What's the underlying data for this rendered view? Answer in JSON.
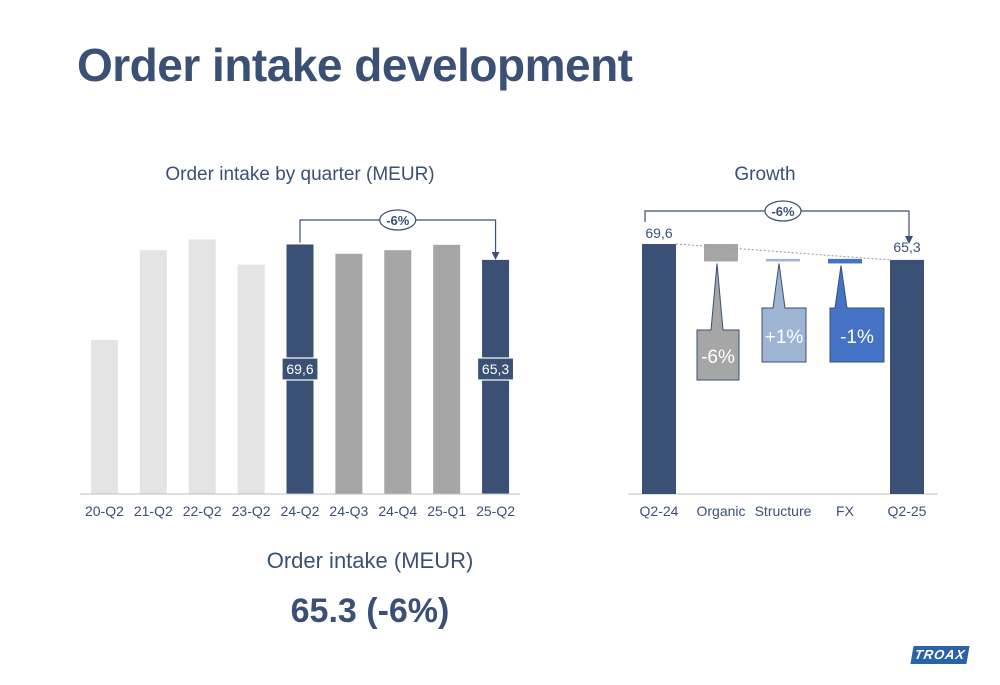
{
  "title": "Order intake development",
  "summary": {
    "label": "Order intake (MEUR)",
    "value": "65.3 (-6%)"
  },
  "logo_text": "TROAX",
  "colors": {
    "light_grey": "#e4e4e4",
    "mid_grey": "#a6a6a6",
    "navy": "#3a5075",
    "light_blue": "#9db4d3",
    "blue": "#4472c4"
  },
  "chart_data": [
    {
      "type": "bar",
      "title": "Order intake by quarter (MEUR)",
      "categories": [
        "20-Q2",
        "21-Q2",
        "22-Q2",
        "23-Q2",
        "24-Q2",
        "24-Q3",
        "24-Q4",
        "25-Q1",
        "25-Q2"
      ],
      "values": [
        43,
        68,
        71,
        64,
        69.6,
        67,
        68,
        69.5,
        65.3
      ],
      "bar_colors": [
        "light_grey",
        "light_grey",
        "light_grey",
        "light_grey",
        "navy",
        "mid_grey",
        "mid_grey",
        "mid_grey",
        "navy"
      ],
      "data_labels": [
        {
          "index": 4,
          "text": "69,6"
        },
        {
          "index": 8,
          "text": "65,3"
        }
      ],
      "annotation": {
        "from": "24-Q2",
        "to": "25-Q2",
        "text": "-6%"
      },
      "ylim": [
        0,
        82
      ],
      "xlabel": "",
      "ylabel": ""
    },
    {
      "type": "bar",
      "subtype": "waterfall",
      "title": "Growth",
      "categories": [
        "Q2-24",
        "Organic",
        "Structure",
        "FX",
        "Q2-25"
      ],
      "start": {
        "label": "Q2-24",
        "value": 69.6,
        "text": "69,6"
      },
      "steps": [
        {
          "label": "Organic",
          "pct": -6,
          "text": "-6%",
          "color": "mid_grey"
        },
        {
          "label": "Structure",
          "pct": 1,
          "text": "+1%",
          "color": "light_blue"
        },
        {
          "label": "FX",
          "pct": -1,
          "text": "-1%",
          "color": "blue"
        }
      ],
      "end": {
        "label": "Q2-25",
        "value": 65.3,
        "text": "65,3"
      },
      "annotation": {
        "from": "Q2-24",
        "to": "Q2-25",
        "text": "-6%"
      },
      "xlabel": "",
      "ylabel": ""
    }
  ]
}
